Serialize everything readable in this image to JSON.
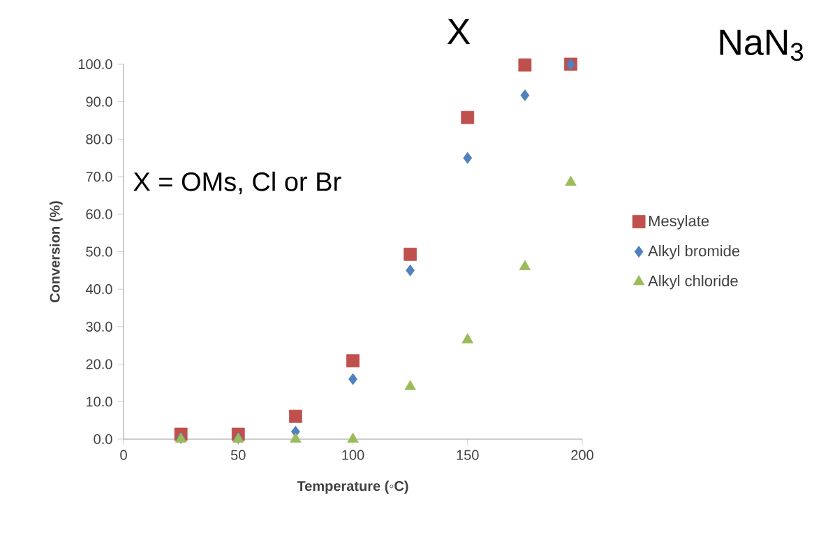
{
  "chart_data": {
    "type": "scatter",
    "xlabel": "Temperature (◦C)",
    "ylabel": "Conversion (%)",
    "x": [
      25,
      50,
      75,
      100,
      125,
      150,
      175,
      195
    ],
    "series": [
      {
        "name": "Mesylate",
        "color": "#c0504d",
        "marker": "square",
        "values": [
          1.3,
          1.3,
          6.1,
          20.9,
          49.3,
          85.8,
          99.8,
          100
        ]
      },
      {
        "name": "Alkyl bromide",
        "color": "#4f81bd",
        "marker": "diamond",
        "values": [
          0.3,
          0.3,
          2.0,
          16.0,
          45.0,
          75.0,
          91.7,
          100
        ]
      },
      {
        "name": "Alkyl chloride",
        "color": "#9bbb59",
        "marker": "triangle",
        "values": [
          0,
          0,
          0,
          0,
          14.0,
          26.5,
          46.0,
          68.5
        ]
      }
    ],
    "xlim": [
      0,
      200
    ],
    "xticks": [
      0,
      50,
      100,
      150,
      200
    ],
    "ylim": [
      0,
      100
    ],
    "yticks": [
      {
        "value": 0,
        "label": "0.0"
      },
      {
        "value": 10,
        "label": "10.0"
      },
      {
        "value": 20,
        "label": "20.0"
      },
      {
        "value": 30,
        "label": "30.0"
      },
      {
        "value": 40,
        "label": "40.0"
      },
      {
        "value": 50,
        "label": "50.0"
      },
      {
        "value": 60,
        "label": "60.0"
      },
      {
        "value": 70,
        "label": "70.0"
      },
      {
        "value": 80,
        "label": "80.0"
      },
      {
        "value": 90,
        "label": "90.0"
      },
      {
        "value": 100,
        "label": "100.0"
      }
    ],
    "grid": false,
    "legend": "right",
    "annotations": [
      "X",
      "NaN$_{3}$",
      "X = OMs, Cl or Br"
    ]
  }
}
